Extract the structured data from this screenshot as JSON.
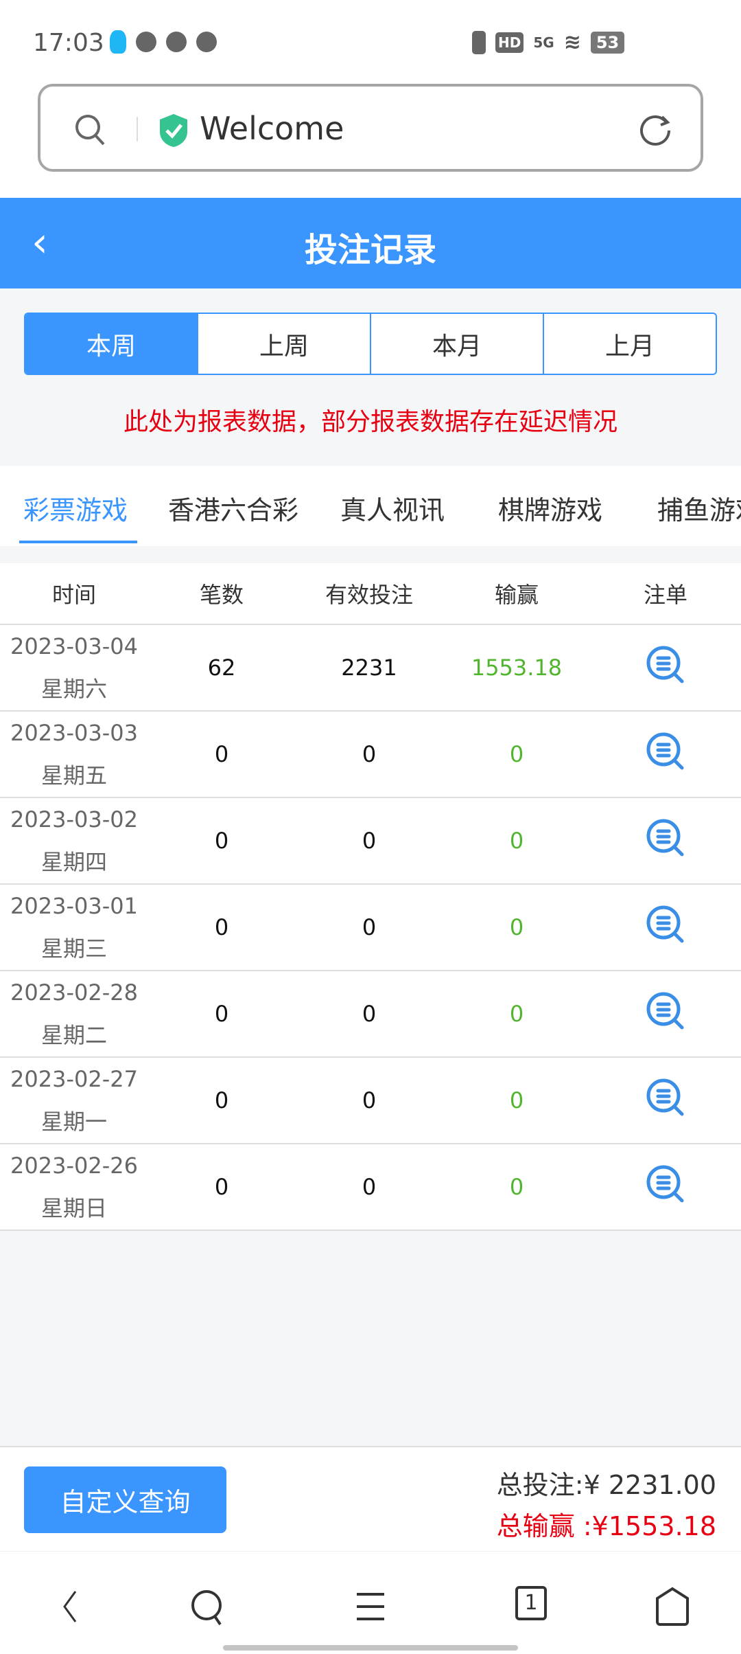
{
  "status": {
    "time": "17:03",
    "battery": "53",
    "network": "5G",
    "hd": "HD"
  },
  "browser": {
    "url_text": "Welcome"
  },
  "header": {
    "title": "投注记录"
  },
  "periods": [
    {
      "label": "本周",
      "active": true
    },
    {
      "label": "上周"
    },
    {
      "label": "本月"
    },
    {
      "label": "上月"
    }
  ],
  "notice": "此处为报表数据，部分报表数据存在延迟情况",
  "categories": [
    "彩票游戏",
    "香港六合彩",
    "真人视讯",
    "棋牌游戏",
    "捕鱼游戏"
  ],
  "table": {
    "headers": [
      "时间",
      "笔数",
      "有效投注",
      "输赢",
      "注单"
    ],
    "rows": [
      {
        "date": "2023-03-04",
        "weekday": "星期六",
        "count": "62",
        "valid": "2231",
        "win": "1553.18"
      },
      {
        "date": "2023-03-03",
        "weekday": "星期五",
        "count": "0",
        "valid": "0",
        "win": "0"
      },
      {
        "date": "2023-03-02",
        "weekday": "星期四",
        "count": "0",
        "valid": "0",
        "win": "0"
      },
      {
        "date": "2023-03-01",
        "weekday": "星期三",
        "count": "0",
        "valid": "0",
        "win": "0"
      },
      {
        "date": "2023-02-28",
        "weekday": "星期二",
        "count": "0",
        "valid": "0",
        "win": "0"
      },
      {
        "date": "2023-02-27",
        "weekday": "星期一",
        "count": "0",
        "valid": "0",
        "win": "0"
      },
      {
        "date": "2023-02-26",
        "weekday": "星期日",
        "count": "0",
        "valid": "0",
        "win": "0"
      }
    ]
  },
  "footer": {
    "custom_query": "自定义查询",
    "total_bet": "总投注:¥ 2231.00",
    "total_win": "总输赢 :¥1553.18"
  },
  "nav": {
    "tabs_count": "1"
  },
  "colors": {
    "accent": "#3a95ff",
    "win": "#52b52f",
    "alert": "#e60012"
  }
}
